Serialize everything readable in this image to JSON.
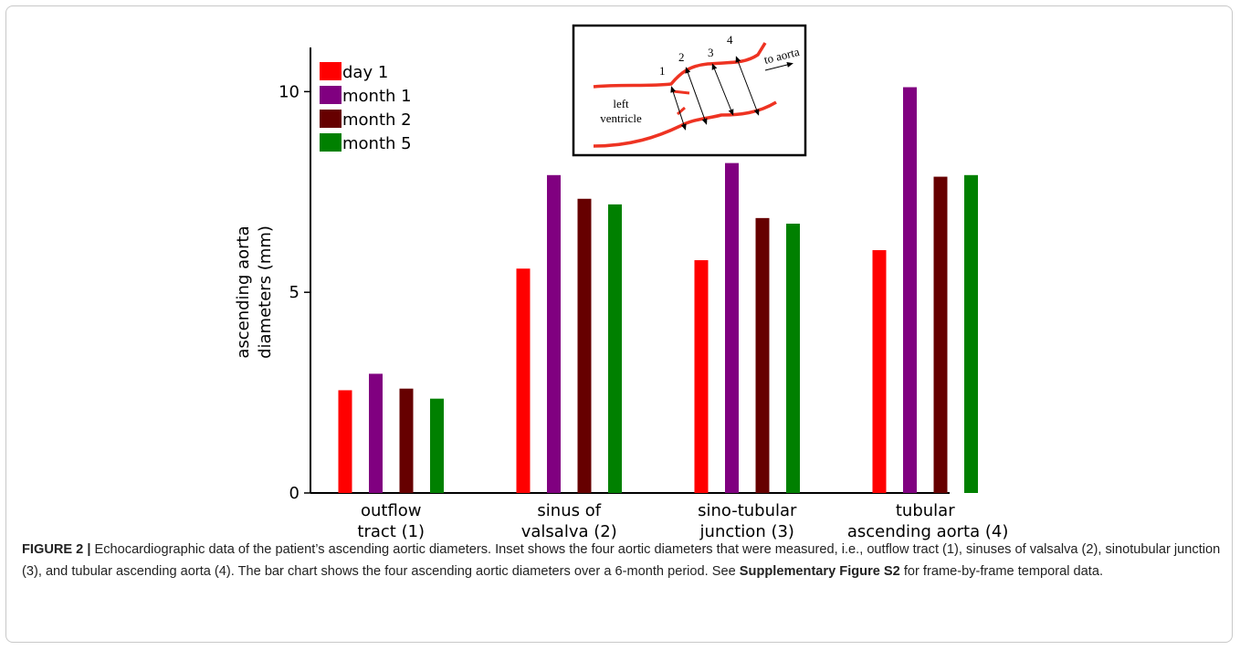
{
  "chart_data": {
    "type": "bar",
    "ylabel": [
      "ascending aorta",
      "diameters (mm)"
    ],
    "categories": [
      [
        "outflow",
        "tract (1)"
      ],
      [
        "sinus of",
        "valsalva (2)"
      ],
      [
        "sino-tubular",
        "junction (3)"
      ],
      [
        "tubular",
        " ascending aorta (4)"
      ]
    ],
    "series": [
      {
        "name": "day 1",
        "color": "#ff0000",
        "values": [
          2.56,
          5.59,
          5.8,
          6.05
        ]
      },
      {
        "name": "month 1",
        "color": "#800080",
        "values": [
          2.97,
          7.92,
          8.22,
          10.11
        ]
      },
      {
        "name": "month 2",
        "color": "#660000",
        "values": [
          2.6,
          7.33,
          6.85,
          7.88
        ]
      },
      {
        "name": "month 5",
        "color": "#008000",
        "values": [
          2.35,
          7.19,
          6.71,
          7.92
        ]
      }
    ],
    "ylim": [
      0,
      11.1
    ],
    "yticks": [
      0,
      5,
      10
    ],
    "grid": false,
    "legend": "upper left",
    "inset": {
      "labels": [
        "1",
        "2",
        "3",
        "4"
      ],
      "left_label": [
        "left",
        "ventricle"
      ],
      "arrow_label": "to aorta"
    }
  },
  "caption": {
    "label": "FIGURE 2 |",
    "text": " Echocardiographic data of the patient’s ascending aortic diameters. Inset shows the four aortic diameters that were measured, i.e., outflow tract (1), sinuses of valsalva (2), sinotubular junction (3), and tubular ascending aorta (4). The bar chart shows the four ascending aortic diameters over a 6-month period. See ",
    "link": "Supplementary Figure S2",
    "tail": " for frame-by-frame temporal data."
  }
}
